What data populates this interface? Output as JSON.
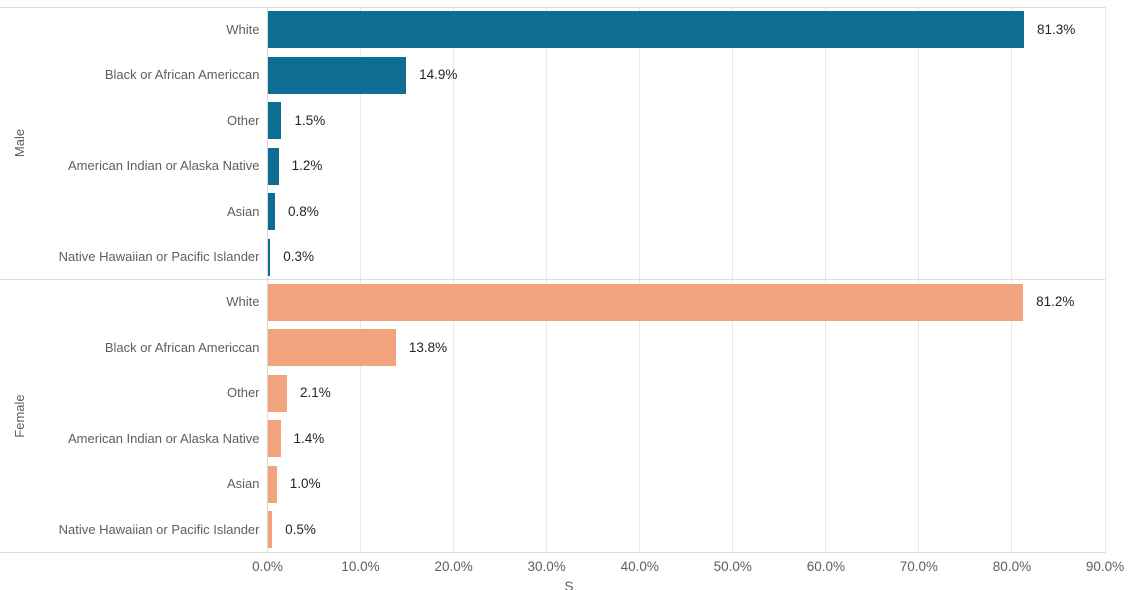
{
  "colors": {
    "male_bar": "#0E6D92",
    "female_bar": "#F2A47E",
    "gridline": "#E8E8E8",
    "separator": "#DBDBDB",
    "axis_line": "#D6D6D6",
    "category_text": "#605E5C",
    "value_text": "#252423",
    "tick_text": "#605E5C",
    "background": "#FFFFFF"
  },
  "chart_data": {
    "type": "bar",
    "orientation": "horizontal",
    "title": "",
    "xlabel_partial": "S",
    "ylabel": "",
    "x_axis": {
      "min": 0,
      "max": 90,
      "ticks": [
        {
          "value": 0,
          "label": "0.0%"
        },
        {
          "value": 10,
          "label": "10.0%"
        },
        {
          "value": 20,
          "label": "20.0%"
        },
        {
          "value": 30,
          "label": "30.0%"
        },
        {
          "value": 40,
          "label": "40.0%"
        },
        {
          "value": 50,
          "label": "50.0%"
        },
        {
          "value": 60,
          "label": "60.0%"
        },
        {
          "value": 70,
          "label": "70.0%"
        },
        {
          "value": 80,
          "label": "80.0%"
        },
        {
          "value": 90,
          "label": "90.0%"
        }
      ],
      "grid": true
    },
    "legend": "none",
    "groups": [
      {
        "label": "Male",
        "color_key": "male_bar",
        "rows": [
          {
            "category": "White",
            "value": 81.3,
            "value_label": "81.3%"
          },
          {
            "category": "Black or African Americcan",
            "value": 14.9,
            "value_label": "14.9%"
          },
          {
            "category": "Other",
            "value": 1.5,
            "value_label": "1.5%"
          },
          {
            "category": "American Indian or Alaska Native",
            "value": 1.2,
            "value_label": "1.2%"
          },
          {
            "category": "Asian",
            "value": 0.8,
            "value_label": "0.8%"
          },
          {
            "category": "Native Hawaiian or Pacific Islander",
            "value": 0.3,
            "value_label": "0.3%"
          }
        ]
      },
      {
        "label": "Female",
        "color_key": "female_bar",
        "rows": [
          {
            "category": "White",
            "value": 81.2,
            "value_label": "81.2%"
          },
          {
            "category": "Black or African Americcan",
            "value": 13.8,
            "value_label": "13.8%"
          },
          {
            "category": "Other",
            "value": 2.1,
            "value_label": "2.1%"
          },
          {
            "category": "American Indian or Alaska Native",
            "value": 1.4,
            "value_label": "1.4%"
          },
          {
            "category": "Asian",
            "value": 1.0,
            "value_label": "1.0%"
          },
          {
            "category": "Native Hawaiian or Pacific Islander",
            "value": 0.5,
            "value_label": "0.5%"
          }
        ]
      }
    ]
  }
}
